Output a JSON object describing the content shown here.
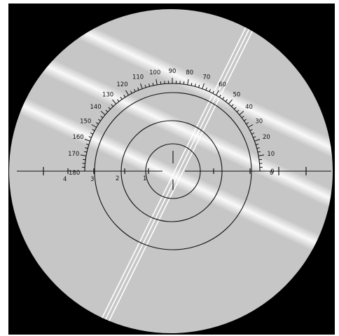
{
  "colors": {
    "background": "#000000",
    "field": "#c6c6c6",
    "ink": "#111111",
    "fringe": "#ffffff",
    "page": "#ffffff"
  },
  "protractor": {
    "angle_labels": [
      "170",
      "160",
      "150",
      "140",
      "130",
      "120",
      "110",
      "100",
      "90",
      "80",
      "70",
      "60",
      "50",
      "40",
      "30",
      "20",
      "10",
      "0"
    ],
    "end_label_left": "180"
  },
  "horizontal_scale": {
    "labels_left": [
      "4",
      "3",
      "2",
      "1"
    ],
    "labels_right": [
      "0"
    ]
  },
  "features": {
    "concentric_circles": 3,
    "diagonal_fringe_bands": 3,
    "bright_parallel_line_set": 1
  }
}
